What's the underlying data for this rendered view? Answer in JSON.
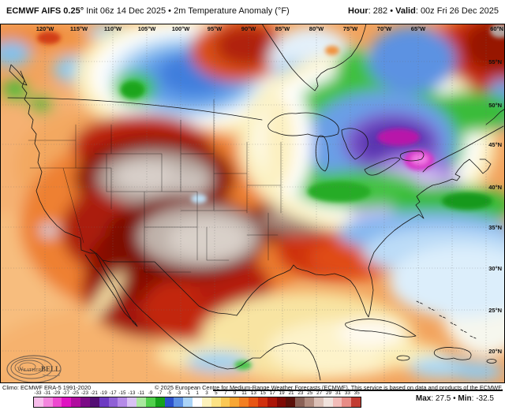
{
  "header": {
    "model": "ECMWF AIFS 0.25°",
    "init_text": "Init 06z 14 Dec 2025",
    "bullet": "•",
    "product": "2m Temperature Anomaly (°F)",
    "hour_label": "Hour",
    "hour_value": ": 282 ",
    "valid_label": "Valid",
    "valid_value": ": 00z Fri 26 Dec 2025"
  },
  "map": {
    "lon_labels": [
      "120°W",
      "115°W",
      "110°W",
      "105°W",
      "100°W",
      "95°W",
      "90°W",
      "85°W",
      "80°W",
      "75°W",
      "70°W",
      "65°W"
    ],
    "lat_labels": [
      "55°N",
      "50°N",
      "45°N",
      "40°N",
      "35°N",
      "30°N",
      "25°N",
      "20°N"
    ],
    "corner_label": "60°N",
    "logo_weather": "Weather",
    "logo_bell": "BELL"
  },
  "footer": {
    "climo": "Climo: ECMWF ERA-5 1991-2020",
    "copyright": "© 2025 European Centre for Medium-Range Weather Forecasts (ECMWF). This service is based on data and products of the ECMWF.",
    "max_label": "Max",
    "max_value": ": 27.5 ",
    "bullet": "• ",
    "min_label": "Min",
    "min_value": ": -32.5"
  },
  "chart_data": {
    "type": "heatmap",
    "title": "2m Temperature Anomaly (°F)",
    "model": "ECMWF AIFS 0.25",
    "init": "06z 14 Dec 2025",
    "forecast_hour": 282,
    "valid": "00z Fri 26 Dec 2025",
    "climatology": "ECMWF ERA-5 1991-2020",
    "unit": "°F",
    "max": 27.5,
    "min": -32.5,
    "colorbar": {
      "values": [
        -33,
        -31,
        -29,
        -27,
        -25,
        -23,
        -21,
        -19,
        -17,
        -15,
        -13,
        -11,
        -9,
        -7,
        -5,
        -3,
        -1,
        1,
        3,
        5,
        7,
        9,
        11,
        13,
        15,
        17,
        19,
        21,
        23,
        25,
        27,
        29,
        31,
        33,
        35
      ],
      "colors": [
        "#f7bdeb",
        "#f386de",
        "#ee48d0",
        "#e013c2",
        "#b00d9e",
        "#7c0b86",
        "#530e74",
        "#6d3ac2",
        "#8f60d6",
        "#b58ae8",
        "#d9c2f4",
        "#a9e89f",
        "#50d04c",
        "#15a21c",
        "#2c52cc",
        "#5e92e4",
        "#abd4f7",
        "#ffffff",
        "#fdf2bc",
        "#fce284",
        "#fbc854",
        "#f8a634",
        "#f37f22",
        "#e85614",
        "#d1300e",
        "#ab1507",
        "#7f0a04",
        "#5a1009",
        "#8a6156",
        "#b18c7f",
        "#dbc0b6",
        "#f0e2dc",
        "#f2bcb8",
        "#e88c86",
        "#c23c32"
      ]
    }
  }
}
